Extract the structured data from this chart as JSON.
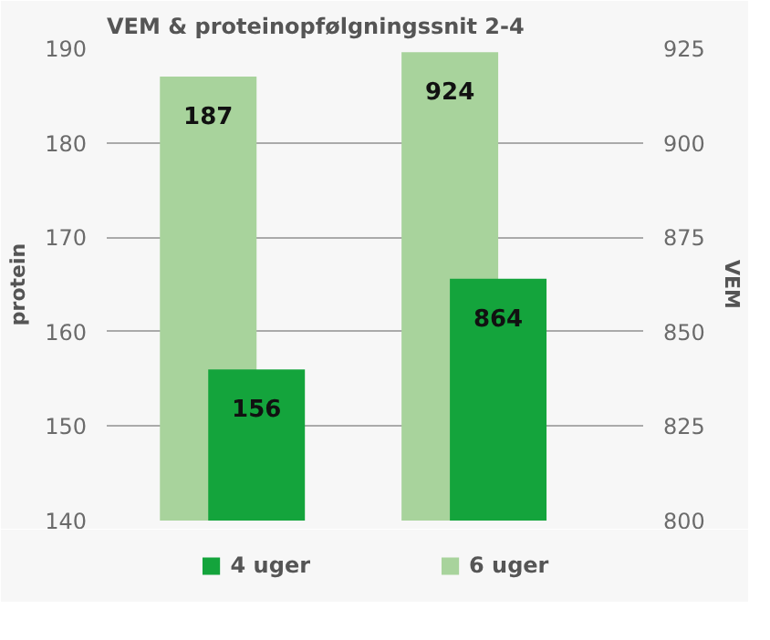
{
  "chart_data": {
    "type": "bar",
    "title": "VEM & proteinopfølgningssnit 2-4",
    "ylabel": "protein",
    "y2label": "VEM",
    "categories": [
      null,
      null
    ],
    "series": [
      {
        "name": "4 uger",
        "color": "#14a43c",
        "values": [
          156,
          null
        ]
      },
      {
        "name": "6 uger",
        "color": "#a8d39c",
        "values": [
          187,
          null
        ]
      },
      {
        "color": "#14a43c",
        "values": [
          null,
          864
        ],
        "axis": "y2"
      },
      {
        "color": "#a8d39c",
        "values": [
          null,
          924
        ],
        "axis": "y2"
      }
    ],
    "ylim": [
      140,
      190
    ],
    "yticks": [
      140,
      150,
      160,
      170,
      180,
      190
    ],
    "y2lim": [
      800,
      925
    ],
    "y2ticks": [
      800,
      825,
      850,
      875,
      900,
      925
    ],
    "data_labels": true,
    "grid": "y",
    "legend": "bottom"
  }
}
